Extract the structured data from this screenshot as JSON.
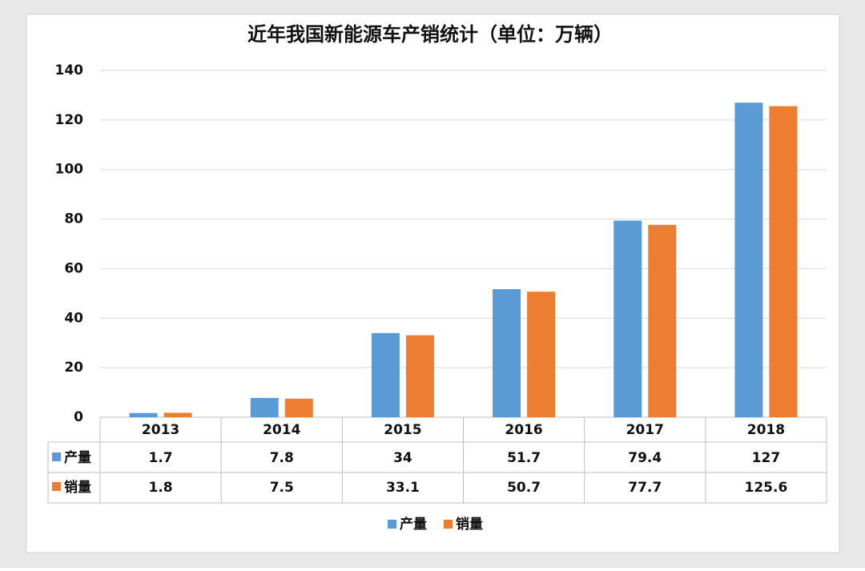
{
  "chart_data": {
    "type": "bar",
    "title": "近年我国新能源车产销统计（单位：万辆）",
    "categories": [
      "2013",
      "2014",
      "2015",
      "2016",
      "2017",
      "2018"
    ],
    "series": [
      {
        "name": "产量",
        "color": "#5b9bd5",
        "values": [
          1.7,
          7.8,
          34,
          51.7,
          79.4,
          127
        ]
      },
      {
        "name": "销量",
        "color": "#ed7d31",
        "values": [
          1.8,
          7.5,
          33.1,
          50.7,
          77.7,
          125.6
        ]
      }
    ],
    "ylim": [
      0,
      140
    ],
    "yticks": [
      0,
      20,
      40,
      60,
      80,
      100,
      120,
      140
    ],
    "grid": true,
    "legend": "bottom"
  }
}
